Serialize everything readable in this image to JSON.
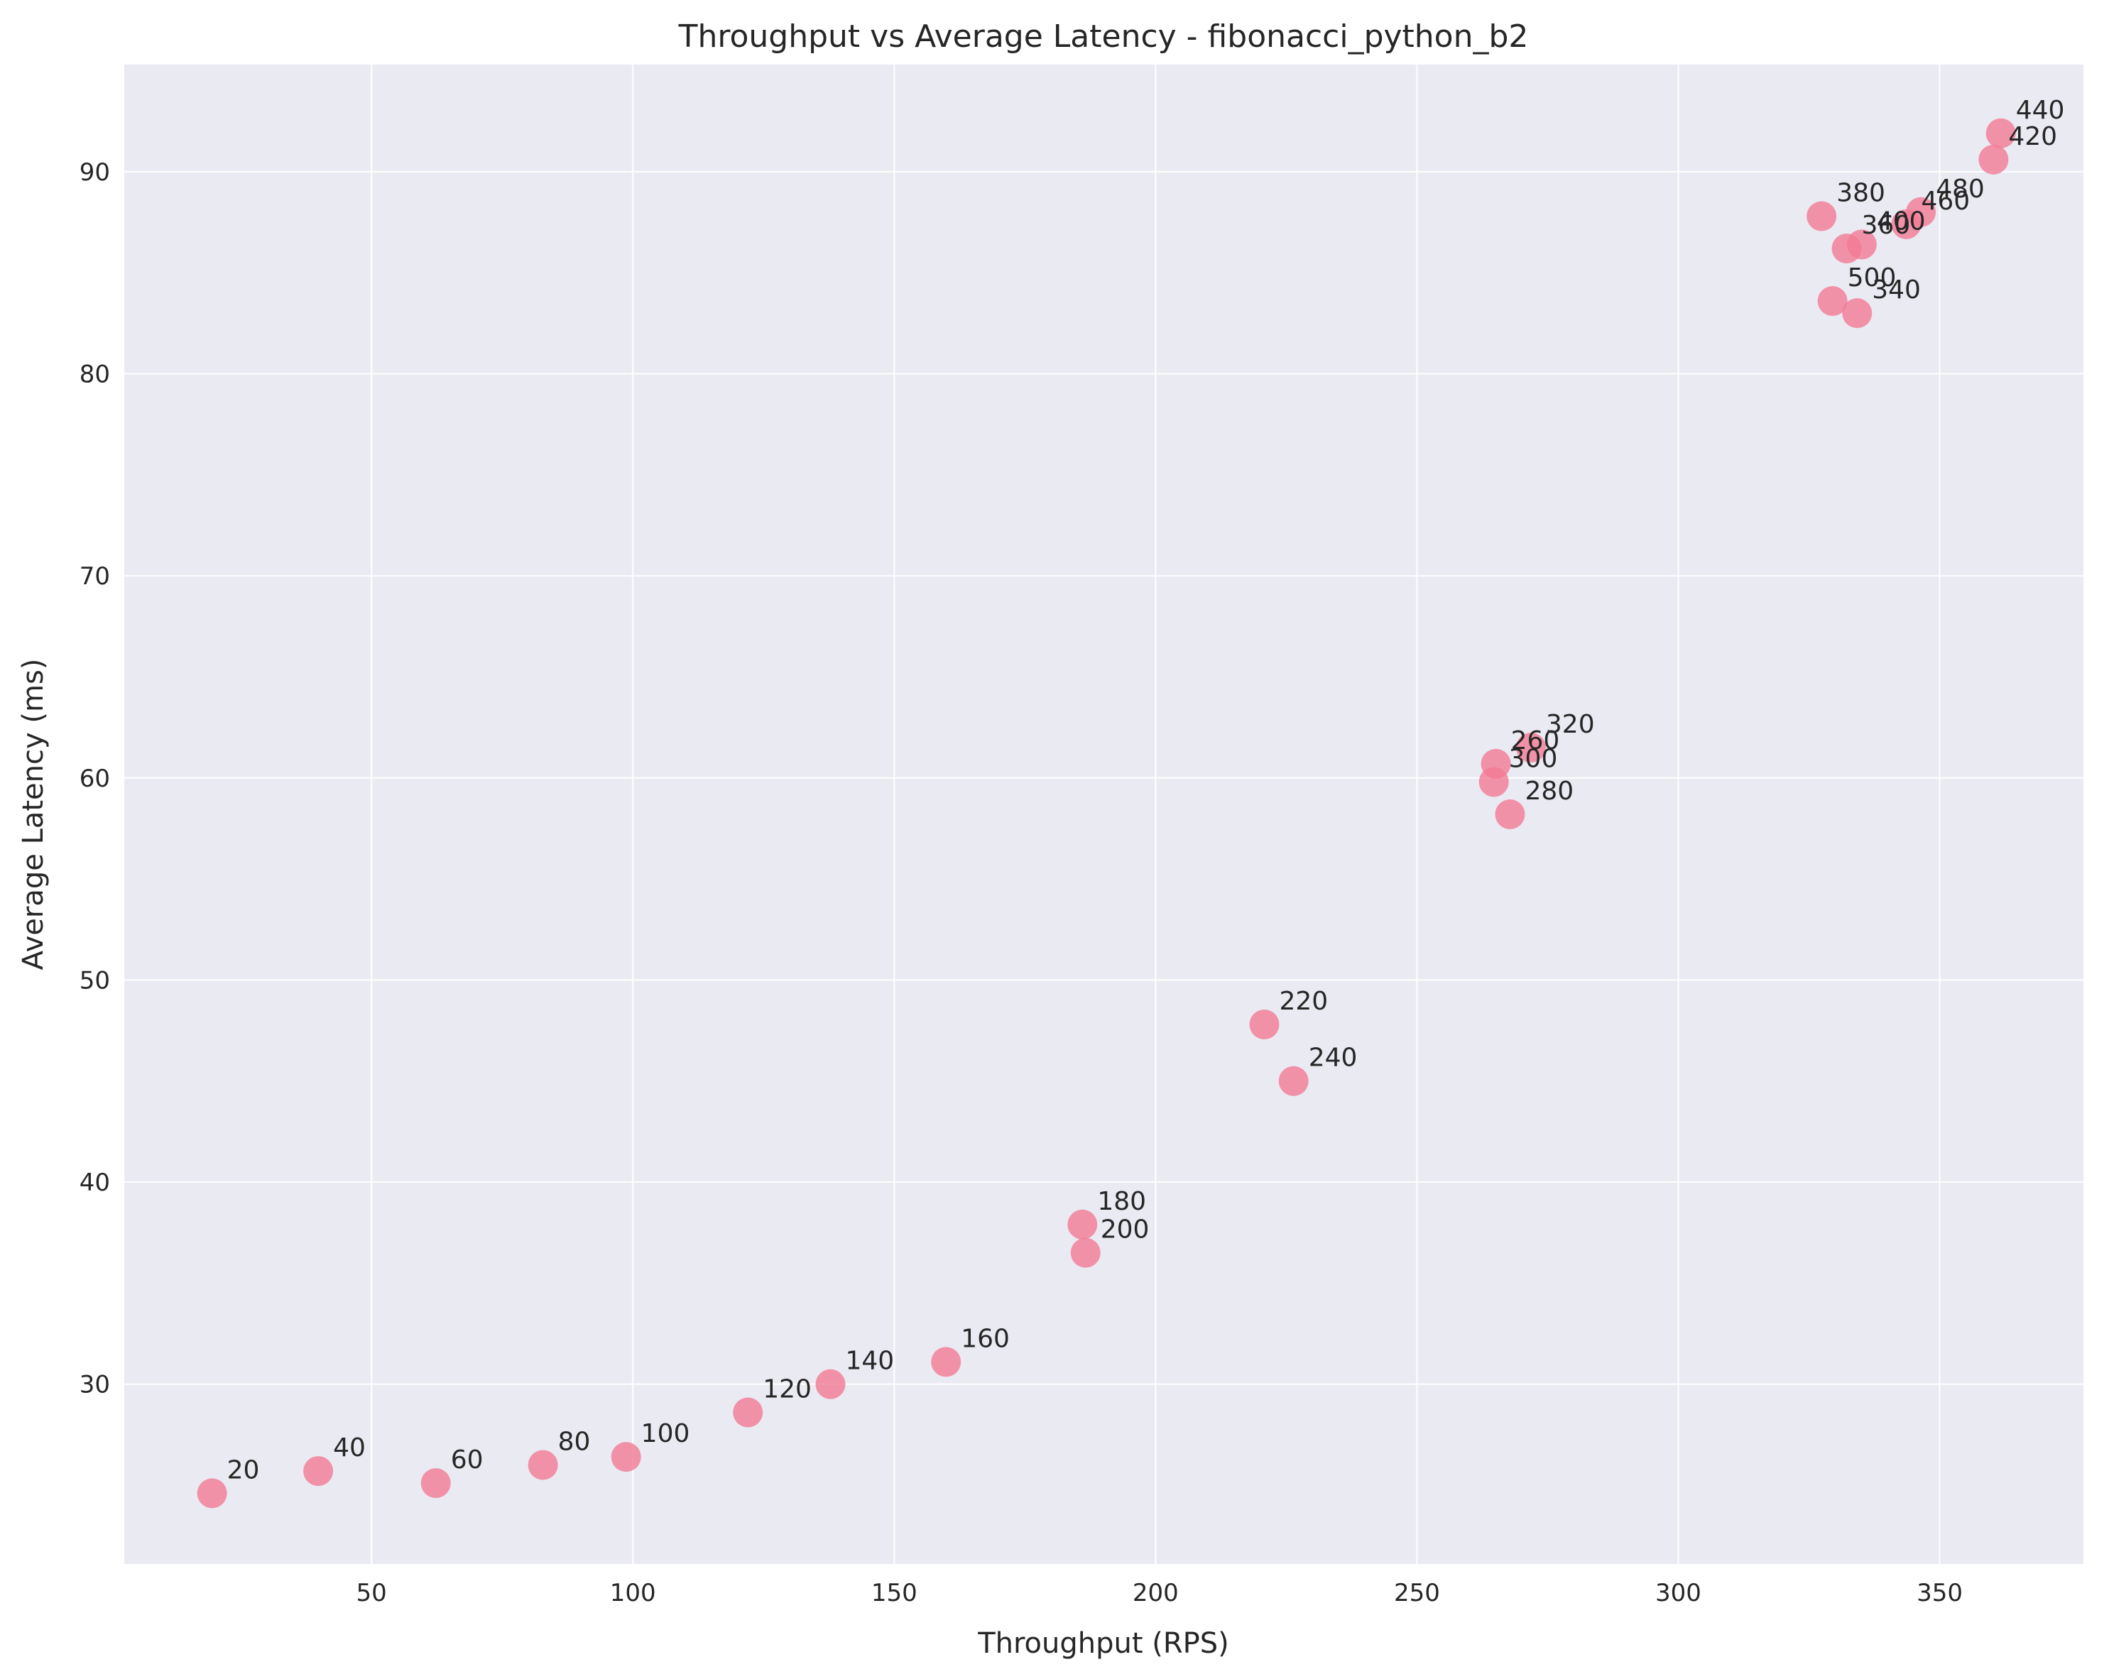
{
  "chart_data": {
    "type": "scatter",
    "title": "Throughput vs Average Latency - fibonacci_python_b2",
    "xlabel": "Throughput (RPS)",
    "ylabel": "Average Latency (ms)",
    "xlim": [
      2.7,
      377.5
    ],
    "ylim": [
      21.1,
      95.3
    ],
    "xticks": [
      50,
      100,
      150,
      200,
      250,
      300,
      350
    ],
    "yticks": [
      30,
      40,
      50,
      60,
      70,
      80,
      90
    ],
    "grid": true,
    "marker_color": "#f37b93",
    "background_color": "#eaeaf2",
    "points": [
      {
        "x": 19.5,
        "y": 24.6,
        "label": "20"
      },
      {
        "x": 39.8,
        "y": 25.7,
        "label": "40"
      },
      {
        "x": 62.3,
        "y": 25.1,
        "label": "60"
      },
      {
        "x": 82.8,
        "y": 26.0,
        "label": "80"
      },
      {
        "x": 98.7,
        "y": 26.4,
        "label": "100"
      },
      {
        "x": 122.0,
        "y": 28.6,
        "label": "120"
      },
      {
        "x": 137.8,
        "y": 30.0,
        "label": "140"
      },
      {
        "x": 159.9,
        "y": 31.1,
        "label": "160"
      },
      {
        "x": 186.0,
        "y": 37.9,
        "label": "180"
      },
      {
        "x": 186.6,
        "y": 36.5,
        "label": "200"
      },
      {
        "x": 220.8,
        "y": 47.8,
        "label": "220"
      },
      {
        "x": 226.4,
        "y": 45.0,
        "label": "240"
      },
      {
        "x": 265.1,
        "y": 60.7,
        "label": "260"
      },
      {
        "x": 267.8,
        "y": 58.2,
        "label": "280"
      },
      {
        "x": 264.7,
        "y": 59.8,
        "label": "300"
      },
      {
        "x": 271.8,
        "y": 61.5,
        "label": "320"
      },
      {
        "x": 334.2,
        "y": 83.0,
        "label": "340"
      },
      {
        "x": 332.2,
        "y": 86.2,
        "label": "360"
      },
      {
        "x": 327.4,
        "y": 87.8,
        "label": "380"
      },
      {
        "x": 335.1,
        "y": 86.4,
        "label": "400"
      },
      {
        "x": 360.3,
        "y": 90.6,
        "label": "420"
      },
      {
        "x": 361.7,
        "y": 91.9,
        "label": "440"
      },
      {
        "x": 343.6,
        "y": 87.4,
        "label": "460"
      },
      {
        "x": 346.4,
        "y": 88.0,
        "label": "480"
      },
      {
        "x": 329.5,
        "y": 83.6,
        "label": "500"
      }
    ]
  }
}
